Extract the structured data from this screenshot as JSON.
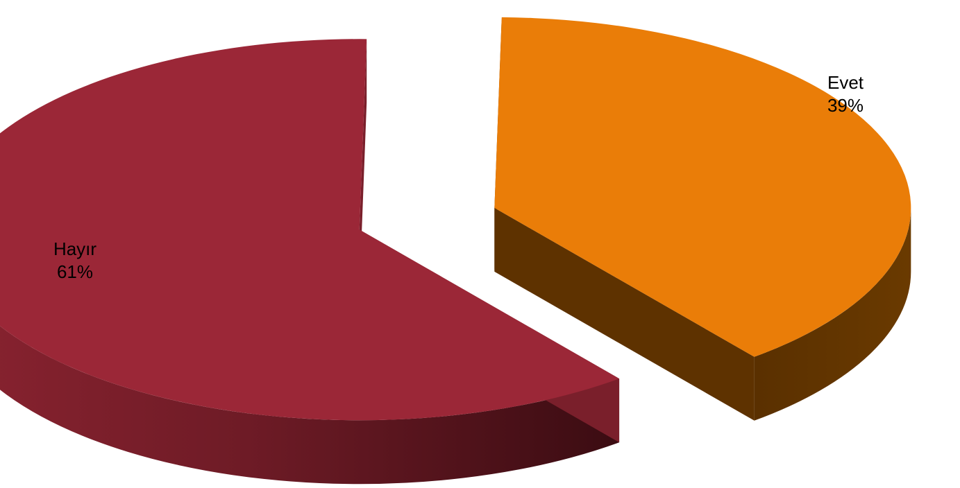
{
  "chart_data": {
    "type": "pie",
    "style": "3d-exploded",
    "categories": [
      "Evet",
      "Hayır"
    ],
    "values": [
      39,
      61
    ],
    "labels": [
      {
        "name": "Evet",
        "percent": "39%"
      },
      {
        "name": "Hayır",
        "percent": "61%"
      }
    ],
    "colors": {
      "Evet": {
        "top": "#ea7d08",
        "side": "#5e3200"
      },
      "Hayır": {
        "top": "#9b2737",
        "side": "#7a1f2b"
      }
    },
    "legend": "none",
    "data_labels": "inside"
  }
}
